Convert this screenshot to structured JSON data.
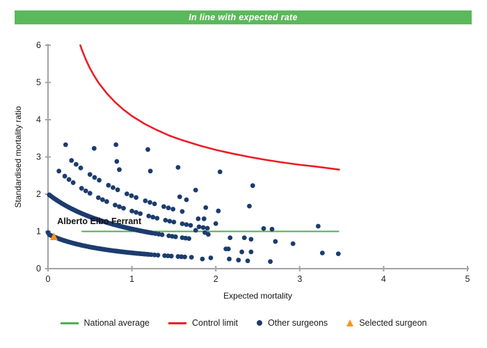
{
  "banner": {
    "text": "In line with expected rate",
    "bg_color": "#5cb85c",
    "text_color": "#ffffff"
  },
  "chart_data": {
    "type": "scatter",
    "title": "",
    "xlabel": "Expected mortality",
    "ylabel": "Standardised mortality ratio",
    "xlim": [
      0,
      5
    ],
    "ylim": [
      0,
      6
    ],
    "x_ticks": [
      "0",
      "1",
      "2",
      "3",
      "4",
      "5"
    ],
    "y_ticks": [
      "0",
      "1",
      "2",
      "3",
      "4",
      "5",
      "6"
    ],
    "grid": "off",
    "axis_color": "#a3a3a3",
    "national_average": {
      "label": "National average",
      "color": "#4caf50",
      "y": 1.0,
      "x_range": [
        0.4,
        3.47
      ]
    },
    "control_limit": {
      "label": "Control limit",
      "color": "#ed1c24",
      "formula": "y = 1 + 3.1/sqrt(x)",
      "points": [
        [
          0.385,
          6.0
        ],
        [
          0.4,
          5.9
        ],
        [
          0.45,
          5.62
        ],
        [
          0.5,
          5.38
        ],
        [
          0.55,
          5.18
        ],
        [
          0.6,
          5.0
        ],
        [
          0.7,
          4.71
        ],
        [
          0.8,
          4.47
        ],
        [
          0.9,
          4.27
        ],
        [
          1.0,
          4.1
        ],
        [
          1.15,
          3.89
        ],
        [
          1.3,
          3.72
        ],
        [
          1.45,
          3.57
        ],
        [
          1.6,
          3.45
        ],
        [
          1.8,
          3.31
        ],
        [
          2.0,
          3.19
        ],
        [
          2.2,
          3.09
        ],
        [
          2.4,
          3.0
        ],
        [
          2.6,
          2.92
        ],
        [
          2.8,
          2.85
        ],
        [
          3.0,
          2.79
        ],
        [
          3.2,
          2.74
        ],
        [
          3.47,
          2.66
        ]
      ]
    },
    "other_surgeons": {
      "label": "Other surgeons",
      "color": "#1c3c6e",
      "dot_radius": 3.4,
      "bands": [
        {
          "name": "lower-thick",
          "a": 0.78,
          "b": 0.84,
          "x_start": 0.015,
          "x_end": 1.2,
          "step": 0.015,
          "dashed": false
        },
        {
          "name": "lower-thick-tail",
          "a": 0.78,
          "b": 0.84,
          "x_start": 1.23,
          "x_end": 1.73,
          "step": 0.04,
          "dashed": true
        },
        {
          "name": "upper-thick",
          "a": 2.27,
          "b": 1.13,
          "x_start": 0.015,
          "x_end": 1.25,
          "step": 0.015,
          "dashed": false
        },
        {
          "name": "upper-thick-tail",
          "a": 2.27,
          "b": 1.13,
          "x_start": 1.28,
          "x_end": 1.7,
          "step": 0.04,
          "dashed": true
        },
        {
          "name": "mid-chain",
          "a": 3.28,
          "b": 1.12,
          "x_start": 0.2,
          "x_end": 1.93,
          "step": 0.05,
          "dashed": true
        },
        {
          "name": "top-chain",
          "a": 4.3,
          "b": 1.2,
          "x_start": 0.28,
          "x_end": 1.62,
          "step": 0.055,
          "dashed": true
        }
      ],
      "scatter": [
        [
          0.0,
          0.97
        ],
        [
          0.21,
          3.33
        ],
        [
          0.55,
          3.23
        ],
        [
          0.81,
          3.33
        ],
        [
          1.19,
          3.2
        ],
        [
          0.82,
          2.88
        ],
        [
          0.13,
          2.62
        ],
        [
          0.85,
          2.66
        ],
        [
          1.22,
          2.62
        ],
        [
          1.55,
          2.72
        ],
        [
          2.05,
          2.6
        ],
        [
          2.44,
          2.23
        ],
        [
          1.76,
          2.11
        ],
        [
          1.57,
          1.93
        ],
        [
          1.65,
          1.85
        ],
        [
          1.88,
          1.64
        ],
        [
          2.4,
          1.68
        ],
        [
          2.03,
          1.55
        ],
        [
          1.79,
          1.34
        ],
        [
          1.86,
          1.34
        ],
        [
          2.0,
          1.21
        ],
        [
          3.22,
          1.14
        ],
        [
          2.57,
          1.08
        ],
        [
          2.67,
          1.06
        ],
        [
          1.76,
          1.03
        ],
        [
          1.87,
          0.97
        ],
        [
          1.91,
          0.92
        ],
        [
          2.17,
          0.83
        ],
        [
          2.34,
          0.83
        ],
        [
          2.42,
          0.79
        ],
        [
          2.71,
          0.73
        ],
        [
          2.92,
          0.67
        ],
        [
          2.12,
          0.53
        ],
        [
          2.15,
          0.53
        ],
        [
          2.31,
          0.45
        ],
        [
          2.42,
          0.45
        ],
        [
          1.84,
          0.26
        ],
        [
          1.94,
          0.29
        ],
        [
          2.16,
          0.26
        ],
        [
          2.27,
          0.23
        ],
        [
          2.38,
          0.21
        ],
        [
          2.65,
          0.19
        ],
        [
          3.27,
          0.42
        ],
        [
          3.46,
          0.4
        ]
      ]
    },
    "selected_surgeon": {
      "label": "Selected surgeon",
      "name": "Alberto Elbo Ferrant",
      "color": "#f7941d",
      "x": 0.07,
      "y": 0.86,
      "name_label_pos": [
        0.11,
        1.27
      ]
    },
    "legend_position": "bottom-center"
  },
  "legend": [
    {
      "label": "National average",
      "swatch": "line",
      "color": "#4caf50"
    },
    {
      "label": "Control limit",
      "swatch": "line",
      "color": "#ed1c24"
    },
    {
      "label": "Other surgeons",
      "swatch": "dot",
      "color": "#1c3c6e"
    },
    {
      "label": "Selected surgeon",
      "swatch": "triangle",
      "color": "#f7941d"
    }
  ]
}
